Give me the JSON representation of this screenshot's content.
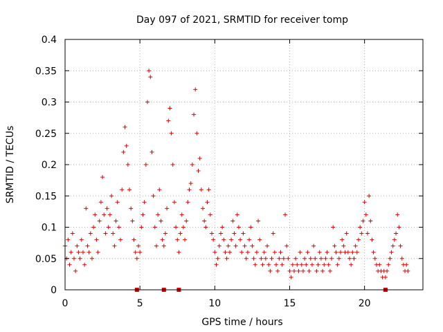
{
  "chart_data": {
    "type": "scatter",
    "title": "Day 097 of 2021, SRMTID for receiver tomp",
    "xlabel": "GPS time / hours",
    "ylabel": "SRMTID / TECUs",
    "xlim": [
      0,
      23.9
    ],
    "ylim": [
      0,
      0.4
    ],
    "xticks": [
      0,
      5,
      10,
      15,
      20
    ],
    "xtick_labels": [
      "0",
      "5",
      "10",
      "15",
      "20"
    ],
    "yticks": [
      0,
      0.05,
      0.1,
      0.15,
      0.2,
      0.25,
      0.3,
      0.35,
      0.4
    ],
    "ytick_labels": [
      "0",
      "0.05",
      "0.1",
      "0.15",
      "0.2",
      "0.25",
      "0.3",
      "0.35",
      "0.4"
    ],
    "grid": true,
    "marker": "plus",
    "color": "#dd0000",
    "series": [
      {
        "name": "SRMTID",
        "points": [
          [
            0.0,
            0.07
          ],
          [
            0.1,
            0.05
          ],
          [
            0.2,
            0.08
          ],
          [
            0.3,
            0.04
          ],
          [
            0.4,
            0.06
          ],
          [
            0.5,
            0.09
          ],
          [
            0.6,
            0.05
          ],
          [
            0.7,
            0.03
          ],
          [
            0.8,
            0.07
          ],
          [
            0.9,
            0.06
          ],
          [
            1.0,
            0.05
          ],
          [
            1.1,
            0.08
          ],
          [
            1.2,
            0.06
          ],
          [
            1.3,
            0.04
          ],
          [
            1.4,
            0.13
          ],
          [
            1.5,
            0.07
          ],
          [
            1.6,
            0.06
          ],
          [
            1.7,
            0.09
          ],
          [
            1.8,
            0.05
          ],
          [
            1.9,
            0.1
          ],
          [
            2.0,
            0.12
          ],
          [
            2.1,
            0.08
          ],
          [
            2.2,
            0.06
          ],
          [
            2.3,
            0.11
          ],
          [
            2.4,
            0.14
          ],
          [
            2.5,
            0.18
          ],
          [
            2.6,
            0.12
          ],
          [
            2.7,
            0.09
          ],
          [
            2.8,
            0.13
          ],
          [
            2.9,
            0.1
          ],
          [
            3.0,
            0.12
          ],
          [
            3.1,
            0.15
          ],
          [
            3.2,
            0.09
          ],
          [
            3.3,
            0.07
          ],
          [
            3.4,
            0.11
          ],
          [
            3.5,
            0.14
          ],
          [
            3.6,
            0.1
          ],
          [
            3.7,
            0.08
          ],
          [
            3.8,
            0.16
          ],
          [
            3.9,
            0.22
          ],
          [
            4.0,
            0.26
          ],
          [
            4.1,
            0.23
          ],
          [
            4.2,
            0.2
          ],
          [
            4.3,
            0.16
          ],
          [
            4.4,
            0.13
          ],
          [
            4.5,
            0.11
          ],
          [
            4.6,
            0.08
          ],
          [
            4.7,
            0.06
          ],
          [
            4.8,
            0.05
          ],
          [
            4.9,
            0.07
          ],
          [
            5.0,
            0.06
          ],
          [
            5.1,
            0.1
          ],
          [
            5.2,
            0.12
          ],
          [
            5.3,
            0.14
          ],
          [
            5.4,
            0.2
          ],
          [
            5.5,
            0.3
          ],
          [
            5.6,
            0.35
          ],
          [
            5.7,
            0.34
          ],
          [
            5.8,
            0.22
          ],
          [
            5.9,
            0.15
          ],
          [
            6.0,
            0.1
          ],
          [
            6.1,
            0.07
          ],
          [
            6.2,
            0.12
          ],
          [
            6.3,
            0.16
          ],
          [
            6.4,
            0.11
          ],
          [
            6.5,
            0.08
          ],
          [
            6.6,
            0.07
          ],
          [
            6.7,
            0.09
          ],
          [
            6.8,
            0.13
          ],
          [
            6.9,
            0.27
          ],
          [
            7.0,
            0.29
          ],
          [
            7.1,
            0.25
          ],
          [
            7.2,
            0.2
          ],
          [
            7.3,
            0.14
          ],
          [
            7.4,
            0.1
          ],
          [
            7.5,
            0.08
          ],
          [
            7.6,
            0.06
          ],
          [
            7.7,
            0.09
          ],
          [
            7.8,
            0.12
          ],
          [
            7.9,
            0.1
          ],
          [
            8.0,
            0.08
          ],
          [
            8.1,
            0.11
          ],
          [
            8.2,
            0.14
          ],
          [
            8.3,
            0.16
          ],
          [
            8.4,
            0.17
          ],
          [
            8.5,
            0.2
          ],
          [
            8.6,
            0.28
          ],
          [
            8.7,
            0.32
          ],
          [
            8.8,
            0.25
          ],
          [
            8.9,
            0.19
          ],
          [
            9.0,
            0.21
          ],
          [
            9.1,
            0.16
          ],
          [
            9.2,
            0.13
          ],
          [
            9.3,
            0.11
          ],
          [
            9.4,
            0.1
          ],
          [
            9.5,
            0.14
          ],
          [
            9.6,
            0.16
          ],
          [
            9.7,
            0.12
          ],
          [
            9.8,
            0.09
          ],
          [
            9.9,
            0.08
          ],
          [
            10.0,
            0.06
          ],
          [
            10.1,
            0.04
          ],
          [
            10.2,
            0.05
          ],
          [
            10.3,
            0.07
          ],
          [
            10.4,
            0.09
          ],
          [
            10.5,
            0.1
          ],
          [
            10.6,
            0.08
          ],
          [
            10.7,
            0.06
          ],
          [
            10.8,
            0.05
          ],
          [
            10.9,
            0.07
          ],
          [
            11.0,
            0.06
          ],
          [
            11.1,
            0.08
          ],
          [
            11.2,
            0.11
          ],
          [
            11.3,
            0.09
          ],
          [
            11.4,
            0.07
          ],
          [
            11.5,
            0.12
          ],
          [
            11.6,
            0.1
          ],
          [
            11.7,
            0.08
          ],
          [
            11.8,
            0.06
          ],
          [
            11.9,
            0.09
          ],
          [
            12.0,
            0.07
          ],
          [
            12.1,
            0.05
          ],
          [
            12.2,
            0.06
          ],
          [
            12.3,
            0.08
          ],
          [
            12.4,
            0.1
          ],
          [
            12.5,
            0.07
          ],
          [
            12.6,
            0.05
          ],
          [
            12.7,
            0.04
          ],
          [
            12.8,
            0.06
          ],
          [
            12.9,
            0.11
          ],
          [
            13.0,
            0.08
          ],
          [
            13.1,
            0.05
          ],
          [
            13.2,
            0.04
          ],
          [
            13.3,
            0.06
          ],
          [
            13.4,
            0.05
          ],
          [
            13.5,
            0.07
          ],
          [
            13.6,
            0.04
          ],
          [
            13.7,
            0.03
          ],
          [
            13.8,
            0.05
          ],
          [
            13.9,
            0.09
          ],
          [
            14.0,
            0.06
          ],
          [
            14.1,
            0.04
          ],
          [
            14.2,
            0.03
          ],
          [
            14.3,
            0.05
          ],
          [
            14.4,
            0.06
          ],
          [
            14.5,
            0.04
          ],
          [
            14.6,
            0.05
          ],
          [
            14.7,
            0.12
          ],
          [
            14.8,
            0.07
          ],
          [
            14.9,
            0.05
          ],
          [
            15.0,
            0.03
          ],
          [
            15.1,
            0.02
          ],
          [
            15.2,
            0.04
          ],
          [
            15.3,
            0.03
          ],
          [
            15.4,
            0.05
          ],
          [
            15.5,
            0.04
          ],
          [
            15.6,
            0.03
          ],
          [
            15.7,
            0.06
          ],
          [
            15.8,
            0.04
          ],
          [
            15.9,
            0.03
          ],
          [
            16.0,
            0.05
          ],
          [
            16.1,
            0.04
          ],
          [
            16.2,
            0.06
          ],
          [
            16.3,
            0.03
          ],
          [
            16.4,
            0.05
          ],
          [
            16.5,
            0.04
          ],
          [
            16.6,
            0.07
          ],
          [
            16.7,
            0.05
          ],
          [
            16.8,
            0.03
          ],
          [
            16.9,
            0.04
          ],
          [
            17.0,
            0.06
          ],
          [
            17.1,
            0.05
          ],
          [
            17.2,
            0.03
          ],
          [
            17.3,
            0.04
          ],
          [
            17.4,
            0.05
          ],
          [
            17.5,
            0.06
          ],
          [
            17.6,
            0.04
          ],
          [
            17.7,
            0.03
          ],
          [
            17.8,
            0.05
          ],
          [
            17.9,
            0.1
          ],
          [
            18.0,
            0.07
          ],
          [
            18.1,
            0.06
          ],
          [
            18.2,
            0.04
          ],
          [
            18.3,
            0.05
          ],
          [
            18.4,
            0.06
          ],
          [
            18.5,
            0.08
          ],
          [
            18.6,
            0.07
          ],
          [
            18.7,
            0.06
          ],
          [
            18.8,
            0.09
          ],
          [
            18.9,
            0.06
          ],
          [
            19.0,
            0.05
          ],
          [
            19.1,
            0.04
          ],
          [
            19.2,
            0.06
          ],
          [
            19.3,
            0.05
          ],
          [
            19.4,
            0.07
          ],
          [
            19.5,
            0.06
          ],
          [
            19.6,
            0.08
          ],
          [
            19.7,
            0.1
          ],
          [
            19.8,
            0.09
          ],
          [
            19.9,
            0.11
          ],
          [
            20.0,
            0.14
          ],
          [
            20.1,
            0.12
          ],
          [
            20.2,
            0.09
          ],
          [
            20.3,
            0.15
          ],
          [
            20.4,
            0.11
          ],
          [
            20.5,
            0.08
          ],
          [
            20.6,
            0.06
          ],
          [
            20.7,
            0.05
          ],
          [
            20.8,
            0.04
          ],
          [
            20.9,
            0.03
          ],
          [
            21.0,
            0.04
          ],
          [
            21.1,
            0.03
          ],
          [
            21.2,
            0.02
          ],
          [
            21.3,
            0.03
          ],
          [
            21.4,
            0.02
          ],
          [
            21.5,
            0.03
          ],
          [
            21.6,
            0.04
          ],
          [
            21.7,
            0.05
          ],
          [
            21.8,
            0.06
          ],
          [
            21.9,
            0.07
          ],
          [
            22.0,
            0.08
          ],
          [
            22.1,
            0.09
          ],
          [
            22.2,
            0.12
          ],
          [
            22.3,
            0.1
          ],
          [
            22.4,
            0.07
          ],
          [
            22.5,
            0.05
          ],
          [
            22.6,
            0.04
          ],
          [
            22.7,
            0.03
          ],
          [
            22.8,
            0.04
          ],
          [
            22.9,
            0.03
          ]
        ]
      }
    ],
    "baseline_markers": [
      4.8,
      6.6,
      7.6,
      21.4
    ]
  }
}
